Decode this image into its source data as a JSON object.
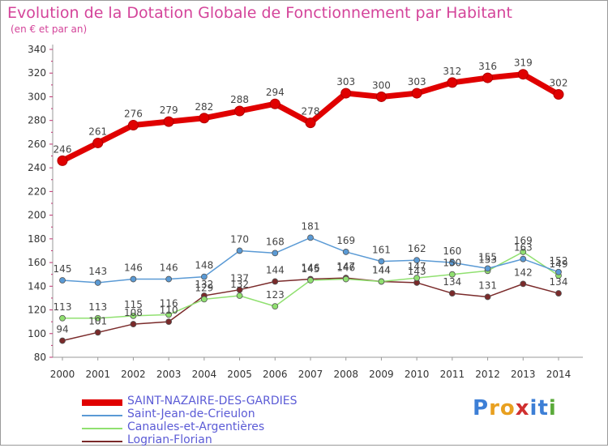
{
  "title": "Evolution de la Dotation Globale de Fonctionnement par Habitant",
  "subtitle": "(en € et par an)",
  "brand": {
    "letters": [
      "P",
      "r",
      "o",
      "x",
      "i",
      "t",
      "i"
    ],
    "colors": [
      "#3d7fd6",
      "#e8a020",
      "#e8a020",
      "#d03030",
      "#3d7fd6",
      "#3d7fd6",
      "#5aaa3a"
    ]
  },
  "chart_data": {
    "type": "line",
    "title": "Evolution de la Dotation Globale de Fonctionnement par Habitant",
    "subtitle": "(en € et par an)",
    "x": [
      "2000",
      "2001",
      "2002",
      "2003",
      "2004",
      "2005",
      "2006",
      "2007",
      "2008",
      "2009",
      "2010",
      "2011",
      "2012",
      "2013",
      "2014"
    ],
    "ylim": [
      80,
      340
    ],
    "yticks": [
      80,
      100,
      120,
      140,
      160,
      180,
      200,
      220,
      240,
      260,
      280,
      300,
      320,
      340
    ],
    "grid": false,
    "legend_position": "bottom-left",
    "series": [
      {
        "name": "SAINT-NAZAIRE-DES-GARDIES",
        "color": "#e00000",
        "label_color": "#5b5bd6",
        "values": [
          246,
          261,
          276,
          279,
          282,
          288,
          294,
          278,
          303,
          300,
          303,
          312,
          316,
          319,
          302
        ]
      },
      {
        "name": "Saint-Jean-de-Crieulon",
        "color": "#5a9ad5",
        "label_color": "#5b5bd6",
        "values": [
          145,
          143,
          146,
          146,
          148,
          170,
          168,
          181,
          169,
          161,
          162,
          160,
          155,
          163,
          152
        ]
      },
      {
        "name": "Canaules-et-Argentières",
        "color": "#90e070",
        "label_color": "#5b5bd6",
        "values": [
          113,
          113,
          115,
          116,
          129,
          132,
          123,
          145,
          146,
          144,
          147,
          150,
          153,
          169,
          149
        ]
      },
      {
        "name": "Logrian-Florian",
        "color": "#7a2a2a",
        "label_color": "#5b5bd6",
        "values": [
          94,
          101,
          108,
          110,
          132,
          137,
          144,
          146,
          147,
          144,
          143,
          134,
          131,
          142,
          134
        ]
      }
    ]
  }
}
